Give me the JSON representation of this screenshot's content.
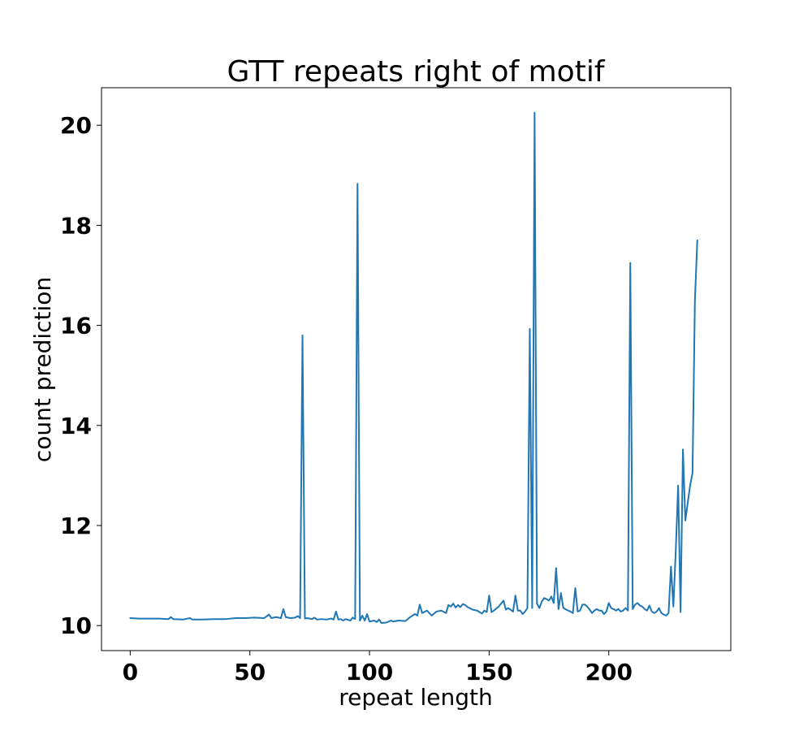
{
  "chart_data": {
    "type": "line",
    "title": "GTT repeats right of motif",
    "xlabel": "repeat length",
    "ylabel": "count prediction",
    "xlim": [
      -12,
      251
    ],
    "ylim": [
      9.5,
      20.75
    ],
    "xticks": [
      0,
      50,
      100,
      150,
      200
    ],
    "yticks": [
      10,
      12,
      14,
      16,
      18,
      20
    ],
    "xtick_labels": [
      "0",
      "50",
      "100",
      "150",
      "200"
    ],
    "ytick_labels": [
      "10",
      "12",
      "14",
      "16",
      "18",
      "20"
    ],
    "grid": false,
    "legend": "none",
    "color": "#1f77b4",
    "series": [
      {
        "points": [
          [
            0,
            10.15
          ],
          [
            4,
            10.14
          ],
          [
            8,
            10.14
          ],
          [
            12,
            10.14
          ],
          [
            16,
            10.13
          ],
          [
            17,
            10.17
          ],
          [
            18,
            10.13
          ],
          [
            22,
            10.12
          ],
          [
            25,
            10.15
          ],
          [
            26,
            10.12
          ],
          [
            30,
            10.12
          ],
          [
            35,
            10.13
          ],
          [
            40,
            10.13
          ],
          [
            44,
            10.15
          ],
          [
            48,
            10.15
          ],
          [
            52,
            10.16
          ],
          [
            56,
            10.15
          ],
          [
            58,
            10.22
          ],
          [
            59,
            10.15
          ],
          [
            61,
            10.17
          ],
          [
            63,
            10.15
          ],
          [
            64,
            10.33
          ],
          [
            65,
            10.17
          ],
          [
            67,
            10.15
          ],
          [
            69,
            10.16
          ],
          [
            70,
            10.19
          ],
          [
            71,
            10.15
          ],
          [
            72,
            15.8
          ],
          [
            73,
            10.14
          ],
          [
            74,
            10.15
          ],
          [
            76,
            10.13
          ],
          [
            77,
            10.16
          ],
          [
            78,
            10.12
          ],
          [
            80,
            10.13
          ],
          [
            82,
            10.12
          ],
          [
            84,
            10.14
          ],
          [
            85,
            10.12
          ],
          [
            86,
            10.28
          ],
          [
            87,
            10.12
          ],
          [
            88,
            10.13
          ],
          [
            89,
            10.1
          ],
          [
            90,
            10.13
          ],
          [
            92,
            10.1
          ],
          [
            93,
            10.16
          ],
          [
            94,
            10.13
          ],
          [
            95,
            18.83
          ],
          [
            96,
            10.1
          ],
          [
            97,
            10.2
          ],
          [
            98,
            10.1
          ],
          [
            99,
            10.23
          ],
          [
            100,
            10.08
          ],
          [
            102,
            10.1
          ],
          [
            103,
            10.07
          ],
          [
            104,
            10.12
          ],
          [
            105,
            10.05
          ],
          [
            107,
            10.06
          ],
          [
            109,
            10.1
          ],
          [
            110,
            10.08
          ],
          [
            112,
            10.1
          ],
          [
            115,
            10.09
          ],
          [
            117,
            10.17
          ],
          [
            119,
            10.23
          ],
          [
            120,
            10.2
          ],
          [
            121,
            10.42
          ],
          [
            122,
            10.25
          ],
          [
            124,
            10.3
          ],
          [
            126,
            10.2
          ],
          [
            128,
            10.28
          ],
          [
            130,
            10.3
          ],
          [
            132,
            10.25
          ],
          [
            133,
            10.41
          ],
          [
            134,
            10.38
          ],
          [
            135,
            10.44
          ],
          [
            136,
            10.36
          ],
          [
            137,
            10.41
          ],
          [
            138,
            10.37
          ],
          [
            139,
            10.43
          ],
          [
            140,
            10.41
          ],
          [
            141,
            10.37
          ],
          [
            143,
            10.32
          ],
          [
            145,
            10.3
          ],
          [
            147,
            10.24
          ],
          [
            148,
            10.3
          ],
          [
            149,
            10.27
          ],
          [
            150,
            10.6
          ],
          [
            151,
            10.27
          ],
          [
            152,
            10.3
          ],
          [
            154,
            10.38
          ],
          [
            155,
            10.44
          ],
          [
            156,
            10.5
          ],
          [
            157,
            10.32
          ],
          [
            158,
            10.35
          ],
          [
            160,
            10.28
          ],
          [
            161,
            10.6
          ],
          [
            162,
            10.3
          ],
          [
            163,
            10.3
          ],
          [
            164,
            10.23
          ],
          [
            165,
            10.28
          ],
          [
            166,
            10.35
          ],
          [
            167,
            15.93
          ],
          [
            168,
            10.35
          ],
          [
            169,
            20.25
          ],
          [
            170,
            10.44
          ],
          [
            171,
            10.35
          ],
          [
            172,
            10.48
          ],
          [
            173,
            10.55
          ],
          [
            174,
            10.53
          ],
          [
            175,
            10.5
          ],
          [
            176,
            10.58
          ],
          [
            177,
            10.45
          ],
          [
            178,
            11.15
          ],
          [
            179,
            10.33
          ],
          [
            180,
            10.65
          ],
          [
            181,
            10.35
          ],
          [
            183,
            10.3
          ],
          [
            184,
            10.28
          ],
          [
            185,
            10.25
          ],
          [
            186,
            10.75
          ],
          [
            187,
            10.28
          ],
          [
            188,
            10.3
          ],
          [
            189,
            10.42
          ],
          [
            190,
            10.42
          ],
          [
            191,
            10.38
          ],
          [
            192,
            10.32
          ],
          [
            193,
            10.25
          ],
          [
            194,
            10.3
          ],
          [
            195,
            10.33
          ],
          [
            196,
            10.3
          ],
          [
            197,
            10.3
          ],
          [
            198,
            10.23
          ],
          [
            199,
            10.28
          ],
          [
            200,
            10.45
          ],
          [
            201,
            10.35
          ],
          [
            202,
            10.33
          ],
          [
            203,
            10.3
          ],
          [
            204,
            10.33
          ],
          [
            205,
            10.28
          ],
          [
            206,
            10.3
          ],
          [
            207,
            10.35
          ],
          [
            208,
            10.3
          ],
          [
            209,
            17.25
          ],
          [
            210,
            10.33
          ],
          [
            211,
            10.42
          ],
          [
            212,
            10.45
          ],
          [
            213,
            10.4
          ],
          [
            214,
            10.38
          ],
          [
            215,
            10.33
          ],
          [
            216,
            10.3
          ],
          [
            217,
            10.4
          ],
          [
            218,
            10.28
          ],
          [
            219,
            10.25
          ],
          [
            220,
            10.28
          ],
          [
            221,
            10.35
          ],
          [
            222,
            10.25
          ],
          [
            223,
            10.22
          ],
          [
            224,
            10.2
          ],
          [
            225,
            10.25
          ],
          [
            226,
            11.18
          ],
          [
            227,
            10.38
          ],
          [
            228,
            11.5
          ],
          [
            229,
            12.8
          ],
          [
            230,
            10.27
          ],
          [
            231,
            13.52
          ],
          [
            232,
            12.1
          ],
          [
            234,
            12.8
          ],
          [
            235,
            13.05
          ],
          [
            236,
            16.5
          ],
          [
            237,
            17.7
          ]
        ]
      }
    ]
  }
}
